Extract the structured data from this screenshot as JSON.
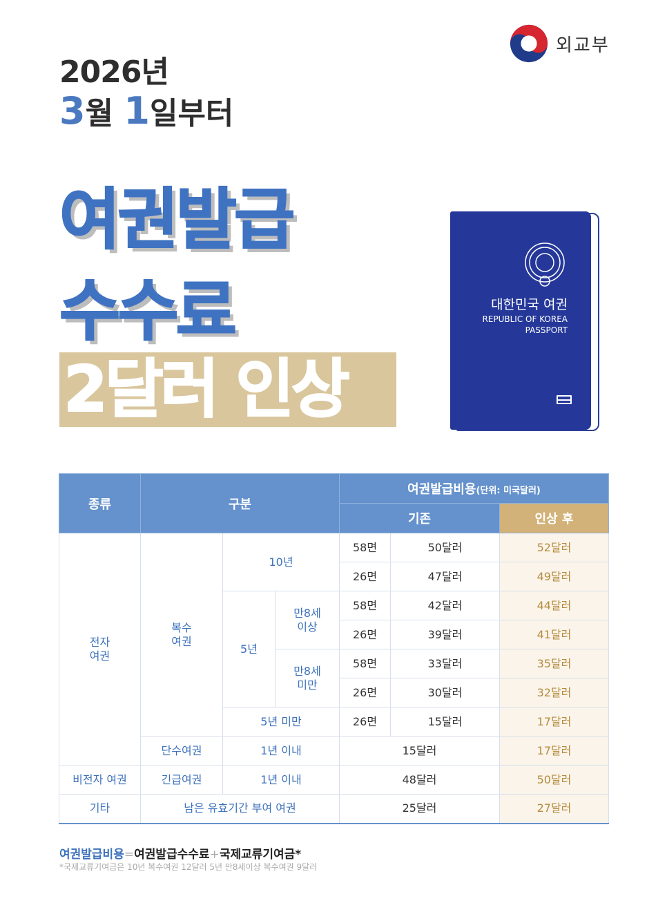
{
  "logo": {
    "text": "외교부"
  },
  "headline": {
    "year": "2026년",
    "month_num": "3",
    "month_unit": "월",
    "day_num": "1",
    "day_unit": "일부터",
    "line1": "여권발급",
    "line2": "수수료",
    "line3": "2달러 인상"
  },
  "passport": {
    "title": "대한민국 여권",
    "en1": "REPUBLIC OF KOREA",
    "en2": "PASSPORT"
  },
  "colors": {
    "blue": "#3f73c2",
    "header": "#6592cc",
    "tan": "#d2b278",
    "banner": "#d9c69d",
    "passport": "#25389a"
  },
  "table": {
    "headers": {
      "type": "종류",
      "category": "구분",
      "cost": "여권발급비용",
      "unit": "(단위: 미국달러)",
      "before": "기존",
      "after": "인상 후"
    },
    "rows": [
      [
        {
          "t": "전자\n여권",
          "rs": 8
        },
        {
          "t": "복수\n여권",
          "rs": 7
        },
        {
          "t": "10년",
          "cs": 2,
          "rs": 2
        },
        {
          "t": "58면",
          "p": 1
        },
        {
          "t": "50달러",
          "p": 1
        },
        {
          "t": "52달러",
          "a": 1
        }
      ],
      [
        {
          "t": "26면",
          "p": 1
        },
        {
          "t": "47달러",
          "p": 1
        },
        {
          "t": "49달러",
          "a": 1
        }
      ],
      [
        {
          "t": "5년",
          "rs": 4
        },
        {
          "t": "만8세\n이상",
          "rs": 2
        },
        {
          "t": "58면",
          "p": 1
        },
        {
          "t": "42달러",
          "p": 1
        },
        {
          "t": "44달러",
          "a": 1
        }
      ],
      [
        {
          "t": "26면",
          "p": 1
        },
        {
          "t": "39달러",
          "p": 1
        },
        {
          "t": "41달러",
          "a": 1
        }
      ],
      [
        {
          "t": "만8세\n미만",
          "rs": 2
        },
        {
          "t": "58면",
          "p": 1
        },
        {
          "t": "33달러",
          "p": 1
        },
        {
          "t": "35달러",
          "a": 1
        }
      ],
      [
        {
          "t": "26면",
          "p": 1
        },
        {
          "t": "30달러",
          "p": 1
        },
        {
          "t": "32달러",
          "a": 1
        }
      ],
      [
        {
          "t": "5년 미만",
          "cs": 2
        },
        {
          "t": "26면",
          "p": 1
        },
        {
          "t": "15달러",
          "p": 1
        },
        {
          "t": "17달러",
          "a": 1
        }
      ],
      [
        {
          "t": "단수여권"
        },
        {
          "t": "1년 이내",
          "cs": 2
        },
        {
          "t": "15달러",
          "cs": 2,
          "p": 1
        },
        {
          "t": "17달러",
          "a": 1
        }
      ],
      [
        {
          "t": "비전자 여권"
        },
        {
          "t": "긴급여권"
        },
        {
          "t": "1년 이내",
          "cs": 2
        },
        {
          "t": "48달러",
          "cs": 2,
          "p": 1
        },
        {
          "t": "50달러",
          "a": 1
        }
      ],
      [
        {
          "t": "기타"
        },
        {
          "t": "남은 유효기간 부여 여권",
          "cs": 3
        },
        {
          "t": "25달러",
          "cs": 2,
          "p": 1
        },
        {
          "t": "27달러",
          "a": 1
        }
      ]
    ]
  },
  "footer": {
    "formula_a": "여권발급비용",
    "eq": "=",
    "formula_b": "여권발급수수료",
    "plus": "+",
    "formula_c": "국제교류기여금*",
    "note": "*국제교류기여금은 10년 복수여권 12달러 5년 만8세이상 복수여권 9달러"
  }
}
